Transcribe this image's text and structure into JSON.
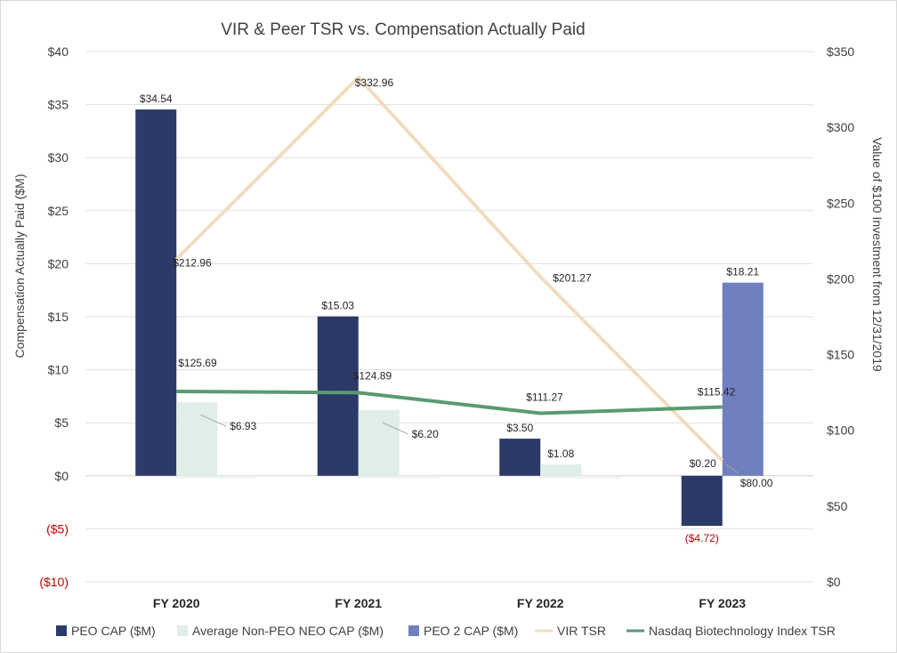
{
  "chart_data": {
    "type": "bar",
    "title": "VIR & Peer TSR vs. Compensation Actually Paid",
    "categories": [
      "FY 2020",
      "FY 2021",
      "FY 2022",
      "FY 2023"
    ],
    "ylabel": "Compensation Actually Paid ($M)",
    "y2label": "Value of $100 Investment from 12/31/2019",
    "ylim": [
      -10,
      40
    ],
    "y2lim": [
      0,
      350
    ],
    "y_ticks": [
      40,
      35,
      30,
      25,
      20,
      15,
      10,
      5,
      0,
      -5,
      -10
    ],
    "y_tick_labels": [
      "$40",
      "$35",
      "$30",
      "$25",
      "$20",
      "$15",
      "$10",
      "$5",
      "$0",
      "($5)",
      "($10)"
    ],
    "y2_ticks": [
      350,
      300,
      250,
      200,
      150,
      100,
      50,
      0
    ],
    "y2_tick_labels": [
      "$350",
      "$300",
      "$250",
      "$200",
      "$150",
      "$100",
      "$50",
      "$0"
    ],
    "grid": true,
    "legend_position": "bottom",
    "series": [
      {
        "name": "PEO CAP ($M)",
        "kind": "bar",
        "axis": "left",
        "color": "#2b3a67",
        "values": [
          34.54,
          15.03,
          3.5,
          -4.72
        ],
        "labels": [
          "$34.54",
          "$15.03",
          "$3.50",
          "($4.72)"
        ]
      },
      {
        "name": "Average Non-PEO NEO CAP ($M)",
        "kind": "bar",
        "axis": "left",
        "color": "#dfeee7",
        "values": [
          6.93,
          6.2,
          1.08,
          0.2
        ],
        "labels": [
          "$6.93",
          "$6.20",
          "$1.08",
          "$0.20"
        ]
      },
      {
        "name": "PEO 2 CAP ($M)",
        "kind": "bar",
        "axis": "left",
        "color": "#6f7fbf",
        "values": [
          null,
          null,
          null,
          18.21
        ],
        "labels": [
          "",
          "",
          "",
          "$18.21"
        ]
      },
      {
        "name": "VIR TSR",
        "kind": "line",
        "axis": "right",
        "color": "#f1dcc0",
        "values": [
          212.96,
          332.96,
          201.27,
          80.0
        ],
        "labels": [
          "$212.96",
          "$332.96",
          "$201.27",
          "$80.00"
        ]
      },
      {
        "name": "Nasdaq Biotechnology Index TSR",
        "kind": "line",
        "axis": "right",
        "color": "#5a9a72",
        "values": [
          125.69,
          124.89,
          111.27,
          115.42
        ],
        "labels": [
          "$125.69",
          "$124.89",
          "$111.27",
          "$115.42"
        ]
      }
    ]
  }
}
